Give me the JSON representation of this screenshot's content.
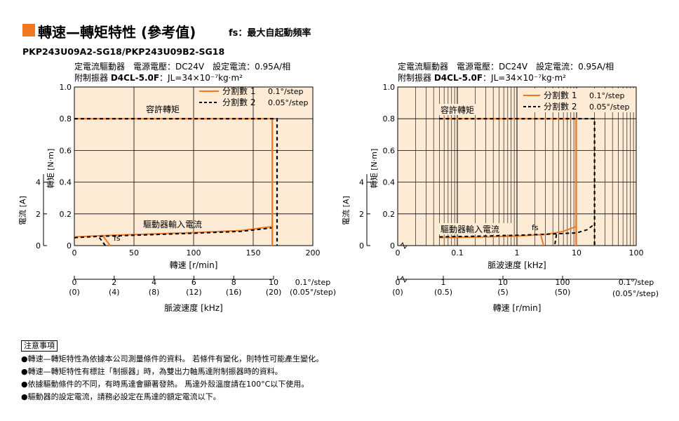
{
  "header": {
    "accent_color": "#f07820",
    "title": "轉速—轉矩特性 (參考值)",
    "subtitle": "fs：最大自起動頻率",
    "model": "PKP243U09A2-SG18/PKP243U09B2-SG18"
  },
  "conditions": {
    "line1": "定電流驅動器　電源電壓：DC24V　設定電流：0.95A/相",
    "line2_prefix": "附制振器",
    "line2_damper": "D4CL-5.0F",
    "line2_suffix": "：JL=34×10⁻⁷kg·m²"
  },
  "colors": {
    "background": "#fdebd6",
    "curve": "#f07820",
    "dashed": "#000000",
    "grid": "#000000"
  },
  "chart_data": [
    {
      "id": "left",
      "type": "line",
      "x_scale": "linear",
      "xlabel": "轉速 [r/min]",
      "xlim": [
        0,
        200
      ],
      "x_ticks": [
        "0",
        "50",
        "100",
        "150",
        "200"
      ],
      "ylabel": "轉矩 [N·m]",
      "ylim": [
        0,
        1.0
      ],
      "y_ticks": [
        "0",
        "0.2",
        "0.4",
        "0.6",
        "0.8",
        "1.0"
      ],
      "y2label": "電流 [A]",
      "y2_ticks": [
        "0",
        "2",
        "4"
      ],
      "legend": [
        {
          "label": "分割數 1",
          "value": "0.1°/step",
          "style": "solid"
        },
        {
          "label": "分割數 2",
          "value": "0.05°/step",
          "style": "dashed"
        }
      ],
      "annotations": {
        "torque": "容許轉矩",
        "current": "驅動器輸入電流",
        "fs": "fs"
      },
      "series": [
        {
          "name": "分割數 1",
          "style": "solid",
          "points": [
            [
              0,
              0.8
            ],
            [
              165,
              0.8
            ],
            [
              166,
              0.8
            ],
            [
              166,
              0
            ]
          ]
        },
        {
          "name": "分割數 2",
          "style": "dashed",
          "points": [
            [
              0,
              0.8
            ],
            [
              170,
              0.8
            ],
            [
              170,
              0
            ]
          ]
        }
      ],
      "current_series": [
        {
          "name": "分割數 1",
          "style": "solid",
          "points": [
            [
              0,
              0.55
            ],
            [
              20,
              0.62
            ],
            [
              50,
              0.7
            ],
            [
              100,
              0.82
            ],
            [
              140,
              0.95
            ],
            [
              166,
              1.2
            ]
          ]
        },
        {
          "name": "分割數 2",
          "style": "dashed",
          "points": [
            [
              0,
              0.5
            ],
            [
              20,
              0.58
            ],
            [
              50,
              0.65
            ],
            [
              100,
              0.78
            ],
            [
              140,
              0.9
            ],
            [
              166,
              1.12
            ]
          ]
        }
      ],
      "fs": {
        "solid": [
          [
            24,
            0.06
          ],
          [
            30,
            0
          ]
        ],
        "dashed": [
          [
            21,
            0.05
          ],
          [
            26,
            0
          ]
        ]
      },
      "pulse_axis": {
        "title": "脈波速度 [kHz]",
        "ticks": [
          {
            "main": "0",
            "sub": "(0)"
          },
          {
            "main": "2",
            "sub": "(4)"
          },
          {
            "main": "4",
            "sub": "(8)"
          },
          {
            "main": "6",
            "sub": "(12)"
          },
          {
            "main": "8",
            "sub": "(16)"
          },
          {
            "main": "10",
            "sub": "(20)"
          }
        ],
        "step_main": "0.1°/step",
        "step_sub": "(0.05°/step)"
      }
    },
    {
      "id": "right",
      "type": "line",
      "x_scale": "log",
      "xlabel": "脈波速度 [kHz]",
      "xlim": [
        0.01,
        100
      ],
      "x_ticks": [
        "0",
        "0.1",
        "1",
        "10",
        "100"
      ],
      "ylabel": "轉矩 [N·m]",
      "ylim": [
        0,
        1.0
      ],
      "y_ticks": [
        "0",
        "0.2",
        "0.4",
        "0.6",
        "0.8",
        "1.0"
      ],
      "y2label": "電流 [A]",
      "y2_ticks": [
        "0",
        "2",
        "4"
      ],
      "legend": [
        {
          "label": "分割數 1",
          "value": "0.1°/step",
          "style": "solid"
        },
        {
          "label": "分割數 2",
          "value": "0.05°/step",
          "style": "dashed"
        }
      ],
      "annotations": {
        "torque": "容許轉矩",
        "current": "驅動器輸入電流",
        "fs": "fs"
      },
      "series": [
        {
          "name": "分割數 1",
          "style": "solid",
          "points": [
            [
              0.05,
              0.8
            ],
            [
              9.8,
              0.8
            ],
            [
              9.8,
              0
            ]
          ]
        },
        {
          "name": "分割數 2",
          "style": "dashed",
          "points": [
            [
              0.05,
              0.8
            ],
            [
              20,
              0.8
            ],
            [
              20,
              0
            ]
          ]
        }
      ],
      "current_series": [
        {
          "name": "分割數 1",
          "style": "solid",
          "points": [
            [
              0.05,
              0.5
            ],
            [
              0.3,
              0.55
            ],
            [
              1,
              0.6
            ],
            [
              3,
              0.7
            ],
            [
              6,
              0.9
            ],
            [
              9.8,
              1.2
            ]
          ]
        },
        {
          "name": "分割數 2",
          "style": "dashed",
          "points": [
            [
              0.05,
              0.55
            ],
            [
              0.3,
              0.6
            ],
            [
              1,
              0.65
            ],
            [
              5,
              0.75
            ],
            [
              10,
              0.8
            ],
            [
              15,
              1.0
            ],
            [
              20,
              1.35
            ]
          ]
        }
      ],
      "fs": {
        "solid": [
          [
            2.5,
            0.07
          ],
          [
            2.8,
            0
          ]
        ],
        "dashed": [
          [
            4.6,
            0.07
          ],
          [
            4.3,
            0
          ]
        ]
      },
      "speed_axis": {
        "title": "轉速 [r/min]",
        "ticks": [
          {
            "main": "0",
            "sub": "(0)"
          },
          {
            "main": "1",
            "sub": "(0.5)"
          },
          {
            "main": "10",
            "sub": "(5)"
          },
          {
            "main": "100",
            "sub": "(50)"
          }
        ],
        "step_main": "0.1°/step",
        "step_sub": "(0.05°/step)"
      }
    }
  ],
  "notes": {
    "title": "注意事項",
    "items": [
      "●轉速—轉矩特性為依據本公司測量條件的資料。 若條件有變化，則特性可能產生變化。",
      "●轉速—轉矩特性有標註「制振器」時，為雙出力軸馬達附制振器時的資料。",
      "●依據驅動條件的不同，有時馬達會顯著發熱。 馬達外殼溫度請在100°C以下使用。",
      "●驅動器的設定電流，請務必設定在馬達的額定電流以下。"
    ]
  }
}
